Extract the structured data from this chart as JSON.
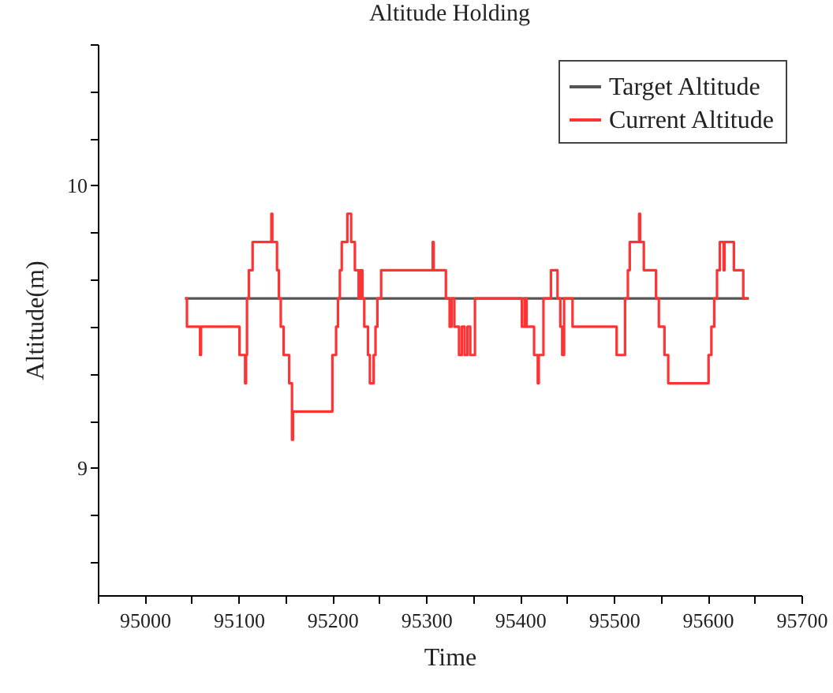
{
  "chart_data": {
    "type": "step",
    "title": "Altitude Holding",
    "xlabel": "Time",
    "ylabel": "Altitude(m)",
    "xlim": [
      94950,
      95700
    ],
    "xticks": [
      {
        "value": 94950,
        "label": null
      },
      95000,
      {
        "value": 95050,
        "label": null
      },
      95100,
      {
        "value": 95150,
        "label": null
      },
      95200,
      {
        "value": 95250,
        "label": null
      },
      95300,
      {
        "value": 95350,
        "label": null
      },
      95400,
      {
        "value": 95450,
        "label": null
      },
      95500,
      {
        "value": 95550,
        "label": null
      },
      95600,
      {
        "value": 95650,
        "label": null
      },
      95700
    ],
    "ylim": [
      8.55,
      10.5
    ],
    "yticks": [
      {
        "value": 8.667,
        "label": null
      },
      {
        "value": 8.833,
        "label": null
      },
      9,
      {
        "value": 9.167,
        "label": null
      },
      {
        "value": 9.333,
        "label": null
      },
      {
        "value": 9.5,
        "label": null
      },
      {
        "value": 9.667,
        "label": null
      },
      {
        "value": 9.833,
        "label": null
      },
      10,
      {
        "value": 10.167,
        "label": null
      },
      {
        "value": 10.333,
        "label": null
      },
      {
        "value": 10.5,
        "label": null
      }
    ],
    "grid": false,
    "legend": "top right",
    "marker": "none",
    "series": [
      {
        "name": "Target Altitude",
        "color": "#555555",
        "type": "line",
        "x": [
          95043,
          95644
        ],
        "values": [
          9.6,
          9.6
        ]
      },
      {
        "name": "Current Altitude",
        "color": "#ff3333",
        "type": "step",
        "x": [
          95043,
          95045,
          95059,
          95060,
          95101,
          95107,
          95108,
          95109,
          95111,
          95115,
          95135,
          95136,
          95141,
          95143,
          95145,
          95148,
          95154,
          95157,
          95158,
          95200,
          95204,
          95206,
          95208,
          95210,
          95216,
          95220,
          95224,
          95228,
          95230,
          95232,
          95234,
          95238,
          95240,
          95244,
          95246,
          95248,
          95252,
          95307,
          95308,
          95321,
          95325,
          95327,
          95330,
          95335,
          95338,
          95341,
          95344,
          95347,
          95352,
          95402,
          95405,
          95407,
          95415,
          95419,
          95420,
          95425,
          95433,
          95440,
          95443,
          95445,
          95447,
          95456,
          95503,
          95512,
          95515,
          95517,
          95527,
          95528,
          95532,
          95545,
          95548,
          95554,
          95558,
          95601,
          95604,
          95607,
          95610,
          95613,
          95617,
          95618,
          95628,
          95638,
          95643
        ],
        "values": [
          9.6,
          9.5,
          9.4,
          9.5,
          9.4,
          9.3,
          9.4,
          9.6,
          9.7,
          9.8,
          9.9,
          9.8,
          9.7,
          9.6,
          9.5,
          9.4,
          9.3,
          9.1,
          9.2,
          9.4,
          9.5,
          9.6,
          9.7,
          9.8,
          9.9,
          9.8,
          9.7,
          9.6,
          9.7,
          9.6,
          9.5,
          9.4,
          9.3,
          9.4,
          9.5,
          9.6,
          9.7,
          9.8,
          9.7,
          9.6,
          9.5,
          9.6,
          9.5,
          9.4,
          9.5,
          9.4,
          9.5,
          9.4,
          9.6,
          9.5,
          9.6,
          9.5,
          9.4,
          9.3,
          9.4,
          9.6,
          9.7,
          9.6,
          9.5,
          9.4,
          9.6,
          9.5,
          9.4,
          9.6,
          9.7,
          9.8,
          9.9,
          9.8,
          9.7,
          9.6,
          9.5,
          9.4,
          9.3,
          9.4,
          9.5,
          9.6,
          9.7,
          9.8,
          9.7,
          9.8,
          9.7,
          9.6,
          9.6
        ]
      }
    ]
  }
}
